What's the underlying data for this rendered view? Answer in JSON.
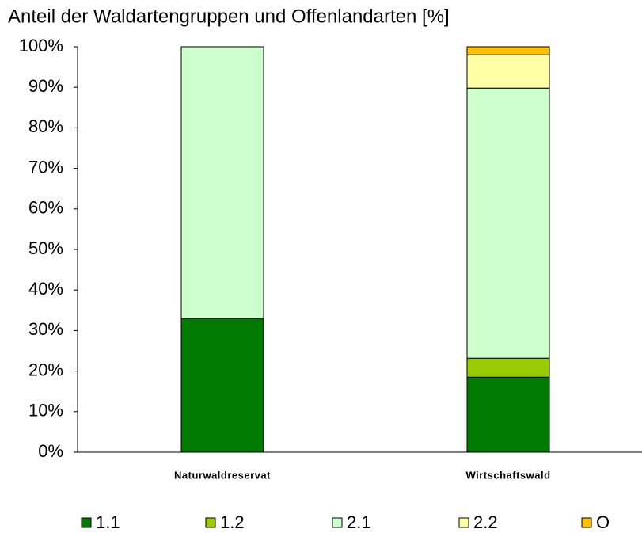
{
  "chart_data": {
    "type": "stacked-bar",
    "title": "Anteil der Waldartengruppen und Offenlandarten [%]",
    "categories": [
      "Naturwaldreservat",
      "Wirtschaftswald"
    ],
    "series": [
      {
        "name": "1.1",
        "color": "#007a00",
        "values": [
          33,
          18.5
        ]
      },
      {
        "name": "1.2",
        "color": "#99cc00",
        "values": [
          0,
          4.7
        ]
      },
      {
        "name": "2.1",
        "color": "#ccffcc",
        "values": [
          67,
          66.6
        ]
      },
      {
        "name": "2.2",
        "color": "#ffffa6",
        "values": [
          0,
          8.2
        ]
      },
      {
        "name": "O",
        "color": "#ffc000",
        "values": [
          0,
          2.0
        ]
      }
    ],
    "ylim": [
      0,
      100
    ],
    "yticks": [
      {
        "value": 0,
        "label": "0%"
      },
      {
        "value": 10,
        "label": "10%"
      },
      {
        "value": 20,
        "label": "20%"
      },
      {
        "value": 30,
        "label": "30%"
      },
      {
        "value": 40,
        "label": "40%"
      },
      {
        "value": 50,
        "label": "50%"
      },
      {
        "value": 60,
        "label": "60%"
      },
      {
        "value": 70,
        "label": "70%"
      },
      {
        "value": 80,
        "label": "80%"
      },
      {
        "value": 90,
        "label": "90%"
      },
      {
        "value": 100,
        "label": "100%"
      }
    ],
    "grid": false,
    "legend": "bottom"
  }
}
